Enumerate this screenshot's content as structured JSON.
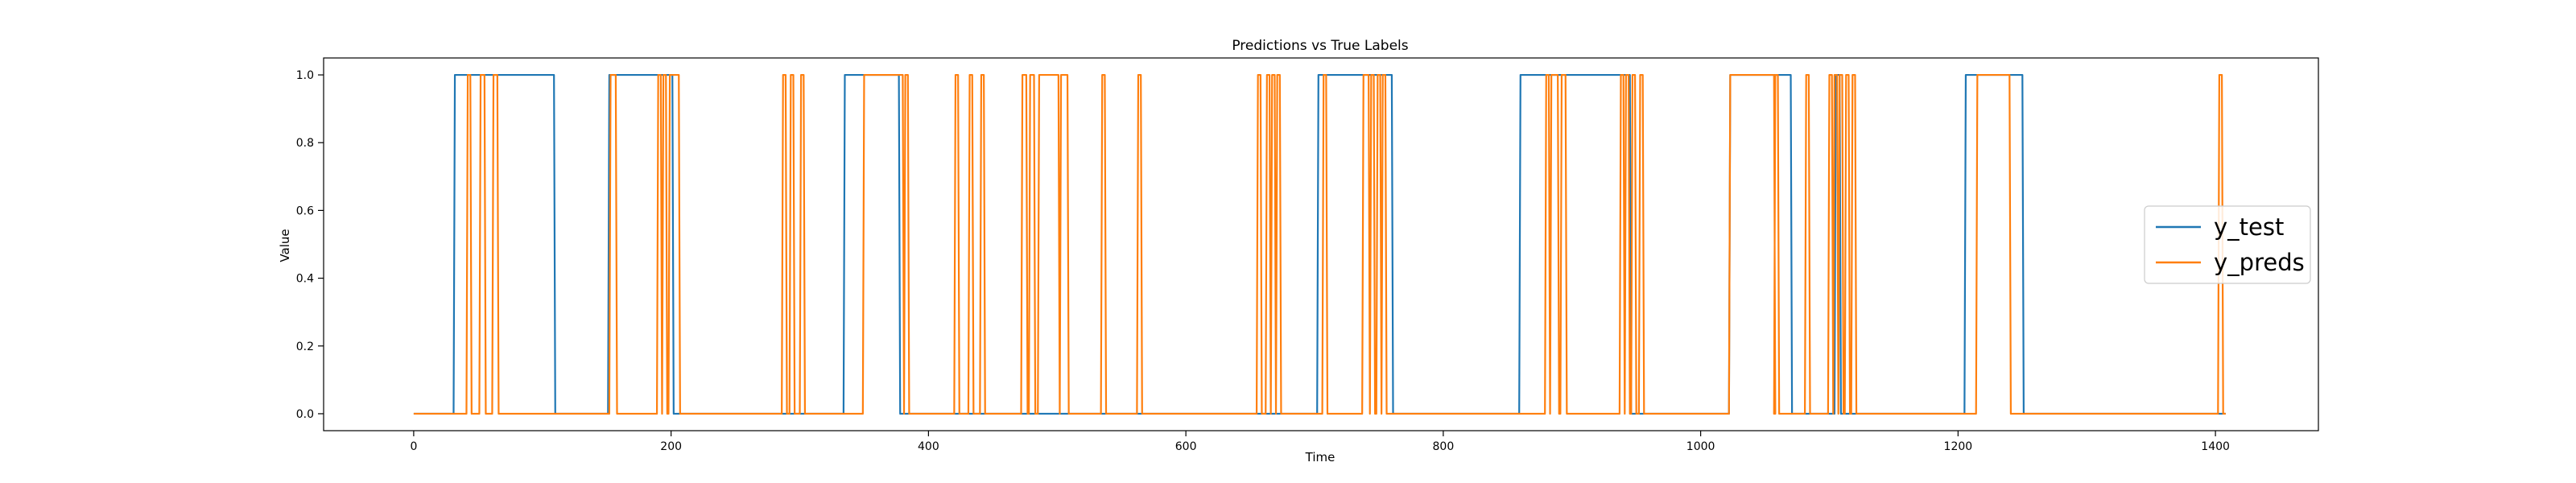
{
  "chart_data": {
    "type": "line",
    "title": "Predictions vs True Labels",
    "xlabel": "Time",
    "ylabel": "Value",
    "xlim": [
      -70,
      1480
    ],
    "ylim": [
      -0.05,
      1.05
    ],
    "x_ticks": [
      0,
      200,
      400,
      600,
      800,
      1000,
      1200,
      1400
    ],
    "y_ticks": [
      0.0,
      0.2,
      0.4,
      0.6,
      0.8,
      1.0
    ],
    "x_tick_labels": [
      "0",
      "200",
      "400",
      "600",
      "800",
      "1000",
      "1200",
      "1400"
    ],
    "y_tick_labels": [
      "0.0",
      "0.2",
      "0.4",
      "0.6",
      "0.8",
      "1.0"
    ],
    "grid": false,
    "legend_position": "center-right",
    "x_range": [
      0,
      1408
    ],
    "series": [
      {
        "name": "y_test",
        "color": "#1f77b4",
        "one_intervals": [
          [
            32,
            109
          ],
          [
            152,
            201
          ],
          [
            335,
            377
          ],
          [
            703,
            760
          ],
          [
            860,
            945
          ],
          [
            1023,
            1070
          ],
          [
            1105,
            1108
          ],
          [
            1206,
            1250
          ]
        ]
      },
      {
        "name": "y_preds",
        "color": "#ff7f0e",
        "one_intervals": [
          [
            42,
            44
          ],
          [
            52,
            55
          ],
          [
            62,
            65
          ],
          [
            153,
            157
          ],
          [
            190,
            192
          ],
          [
            194,
            196
          ],
          [
            199,
            206
          ],
          [
            287,
            289
          ],
          [
            293,
            295
          ],
          [
            301,
            303
          ],
          [
            350,
            380
          ],
          [
            382,
            384
          ],
          [
            421,
            423
          ],
          [
            432,
            434
          ],
          [
            441,
            443
          ],
          [
            473,
            476
          ],
          [
            479,
            482
          ],
          [
            486,
            501
          ],
          [
            503,
            508
          ],
          [
            535,
            537
          ],
          [
            563,
            565
          ],
          [
            656,
            658
          ],
          [
            663,
            665
          ],
          [
            667,
            669
          ],
          [
            671,
            673
          ],
          [
            707,
            709
          ],
          [
            738,
            742
          ],
          [
            744,
            746
          ],
          [
            749,
            751
          ],
          [
            753,
            755
          ],
          [
            880,
            882
          ],
          [
            884,
            889
          ],
          [
            892,
            895
          ],
          [
            938,
            940
          ],
          [
            942,
            944
          ],
          [
            947,
            949
          ],
          [
            953,
            955
          ],
          [
            1023,
            1057
          ],
          [
            1058,
            1060
          ],
          [
            1082,
            1084
          ],
          [
            1100,
            1102
          ],
          [
            1104,
            1106
          ],
          [
            1108,
            1110
          ],
          [
            1113,
            1115
          ],
          [
            1118,
            1120
          ],
          [
            1215,
            1240
          ],
          [
            1403,
            1405
          ]
        ]
      }
    ]
  }
}
